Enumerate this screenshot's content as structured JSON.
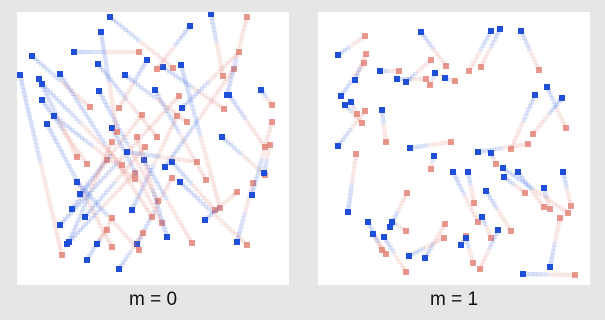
{
  "colors": {
    "background": "#e6e6e6",
    "panel": "#ffffff",
    "blue_endpoint": "#1f4fd8",
    "red_endpoint": "#e07a6e"
  },
  "panels": [
    {
      "caption": "m = 0"
    },
    {
      "caption": "m = 1"
    }
  ]
}
